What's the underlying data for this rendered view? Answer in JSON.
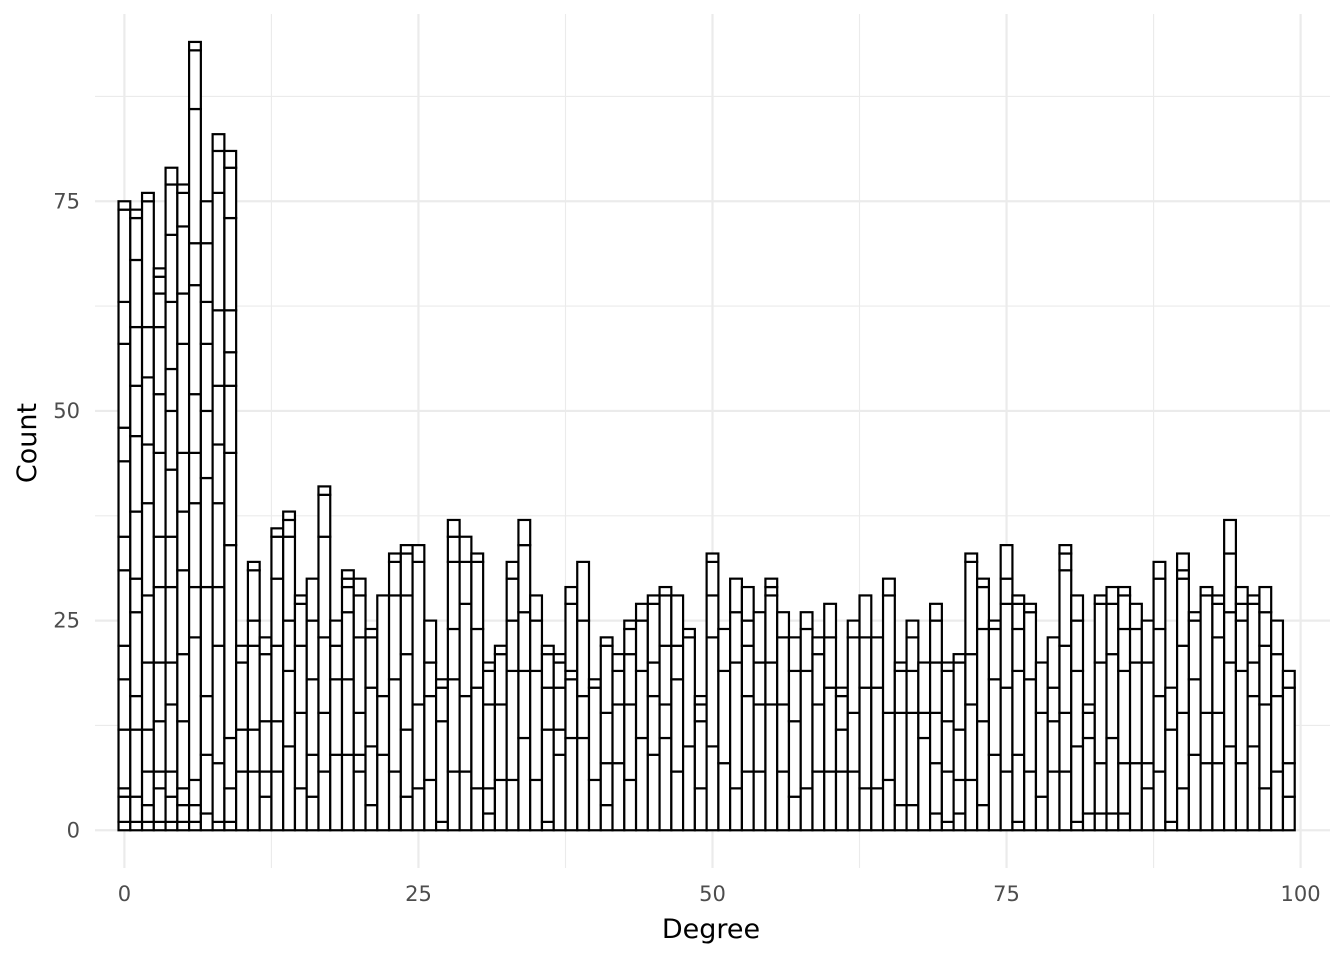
{
  "chart_data": {
    "type": "bar",
    "subtype": "stacked-histogram",
    "xlabel": "Degree",
    "ylabel": "Count",
    "xlim": [
      -2.5,
      102.5
    ],
    "ylim": [
      -4.5,
      99
    ],
    "x_ticks": [
      0,
      25,
      50,
      75,
      100
    ],
    "x_tick_labels": [
      "0",
      "25",
      "50",
      "75",
      "100"
    ],
    "y_ticks": [
      0,
      25,
      50,
      75
    ],
    "y_tick_labels": [
      "0",
      "25",
      "50",
      "75"
    ],
    "grid": true,
    "legend": "none",
    "bar_fill": "#ffffff",
    "bar_outline": "#000000",
    "grid_color": "#ebebeb",
    "categories": [
      0,
      1,
      2,
      3,
      4,
      5,
      6,
      7,
      8,
      9,
      10,
      11,
      12,
      13,
      14,
      15,
      16,
      17,
      18,
      19,
      20,
      21,
      22,
      23,
      24,
      25,
      26,
      27,
      28,
      29,
      30,
      31,
      32,
      33,
      34,
      35,
      36,
      37,
      38,
      39,
      40,
      41,
      42,
      43,
      44,
      45,
      46,
      47,
      48,
      49,
      50,
      51,
      52,
      53,
      54,
      55,
      56,
      57,
      58,
      59,
      60,
      61,
      62,
      63,
      64,
      65,
      66,
      67,
      68,
      69,
      70,
      71,
      72,
      73,
      74,
      75,
      76,
      77,
      78,
      79,
      80,
      81,
      82,
      83,
      84,
      85,
      86,
      87,
      88,
      89,
      90,
      91,
      92,
      93,
      94,
      95,
      96,
      97,
      98,
      99
    ],
    "totals": [
      75,
      74,
      76,
      67,
      79,
      77,
      94,
      74,
      83,
      81,
      22,
      32,
      23,
      36,
      38,
      28,
      30,
      41,
      25,
      31,
      30,
      24,
      28,
      33,
      34,
      34,
      25,
      18,
      37,
      35,
      33,
      20,
      22,
      32,
      37,
      28,
      22,
      21,
      29,
      32,
      18,
      23,
      21,
      25,
      27,
      28,
      29,
      28,
      24,
      16,
      33,
      24,
      30,
      29,
      26,
      30,
      26,
      23,
      26,
      23,
      27,
      17,
      25,
      28,
      23,
      30,
      20,
      25,
      20,
      27,
      20,
      21,
      33,
      30,
      25,
      34,
      28,
      27,
      20,
      23,
      34,
      28,
      15,
      28,
      29,
      29,
      27,
      25,
      32,
      17,
      33,
      26,
      29,
      28,
      37,
      29,
      28,
      29,
      25,
      19
    ],
    "stack_boundaries": [
      [
        1,
        4,
        5,
        12,
        18,
        22,
        31,
        35,
        44,
        48,
        58,
        63,
        74
      ],
      [
        1,
        4,
        12,
        16,
        26,
        30,
        38,
        47,
        53,
        60,
        68,
        73
      ],
      [
        1,
        3,
        7,
        12,
        20,
        28,
        39,
        46,
        54,
        60,
        75
      ],
      [
        1,
        5,
        7,
        13,
        20,
        29,
        35,
        45,
        52,
        60,
        64,
        66
      ],
      [
        1,
        4,
        7,
        15,
        20,
        29,
        35,
        43,
        50,
        55,
        63,
        71,
        77
      ],
      [
        1,
        3,
        5,
        13,
        21,
        31,
        38,
        45,
        58,
        64,
        72,
        76
      ],
      [
        1,
        3,
        6,
        23,
        29,
        39,
        45,
        52,
        65,
        70,
        86,
        93
      ],
      [
        2,
        9,
        16,
        29,
        42,
        50,
        58,
        63,
        70,
        75
      ],
      [
        1,
        8,
        22,
        29,
        39,
        46,
        53,
        62,
        76,
        81
      ],
      [
        1,
        5,
        11,
        34,
        45,
        53,
        57,
        62,
        73,
        79
      ],
      [
        7,
        12,
        20
      ],
      [
        7,
        12,
        22,
        25,
        31
      ],
      [
        4,
        7,
        13,
        21
      ],
      [
        7,
        13,
        22,
        30,
        35
      ],
      [
        10,
        19,
        25,
        35,
        37
      ],
      [
        5,
        14,
        22,
        27
      ],
      [
        4,
        9,
        18,
        25
      ],
      [
        7,
        14,
        23,
        35,
        40
      ],
      [
        9,
        18,
        22
      ],
      [
        9,
        18,
        26,
        29,
        30
      ],
      [
        7,
        9,
        14,
        23,
        28
      ],
      [
        3,
        10,
        17,
        23
      ],
      [
        9,
        16,
        28
      ],
      [
        7,
        18,
        28,
        32
      ],
      [
        4,
        12,
        21,
        28,
        33
      ],
      [
        5,
        15,
        32
      ],
      [
        6,
        16,
        20
      ],
      [
        1,
        13,
        17
      ],
      [
        7,
        18,
        24,
        32,
        35
      ],
      [
        7,
        16,
        27,
        32
      ],
      [
        5,
        17,
        24,
        32
      ],
      [
        2,
        5,
        15,
        19
      ],
      [
        6,
        15,
        21
      ],
      [
        6,
        19,
        25,
        30
      ],
      [
        11,
        19,
        26,
        34
      ],
      [
        6,
        19,
        25
      ],
      [
        1,
        12,
        17,
        21
      ],
      [
        9,
        12,
        17,
        20
      ],
      [
        11,
        18,
        19,
        27
      ],
      [
        11,
        16,
        25
      ],
      [
        6,
        17
      ],
      [
        3,
        8,
        14,
        22
      ],
      [
        8,
        15,
        19
      ],
      [
        6,
        15,
        21,
        24
      ],
      [
        11,
        19,
        25
      ],
      [
        9,
        16,
        20,
        27
      ],
      [
        11,
        15,
        22,
        28
      ],
      [
        7,
        18,
        22
      ],
      [
        10,
        23
      ],
      [
        5,
        13,
        15
      ],
      [
        10,
        23,
        28,
        32
      ],
      [
        8,
        19,
        24
      ],
      [
        5,
        20,
        26
      ],
      [
        7,
        16,
        22,
        25
      ],
      [
        7,
        15,
        20,
        26
      ],
      [
        15,
        20,
        28,
        29
      ],
      [
        7,
        15,
        23
      ],
      [
        4,
        13,
        19,
        23
      ],
      [
        5,
        19,
        24
      ],
      [
        7,
        15,
        21
      ],
      [
        7,
        17,
        23
      ],
      [
        7,
        12,
        16
      ],
      [
        7,
        14,
        23
      ],
      [
        5,
        17,
        23
      ],
      [
        5,
        17,
        23
      ],
      [
        6,
        14,
        28
      ],
      [
        3,
        14,
        19
      ],
      [
        3,
        14,
        19,
        23
      ],
      [
        11,
        14,
        20
      ],
      [
        2,
        8,
        14,
        20,
        25
      ],
      [
        1,
        7,
        13,
        19
      ],
      [
        2,
        6,
        12,
        20
      ],
      [
        6,
        15,
        21,
        32
      ],
      [
        3,
        13,
        24,
        29
      ],
      [
        9,
        18,
        24
      ],
      [
        7,
        17,
        27,
        30
      ],
      [
        1,
        9,
        19,
        24,
        27
      ],
      [
        7,
        18,
        26
      ],
      [
        4,
        14
      ],
      [
        7,
        13,
        17
      ],
      [
        7,
        14,
        22,
        31,
        33
      ],
      [
        1,
        10,
        19,
        25
      ],
      [
        2,
        11,
        14
      ],
      [
        2,
        8,
        20,
        27
      ],
      [
        2,
        11,
        21,
        27
      ],
      [
        2,
        8,
        19,
        24,
        28
      ],
      [
        8,
        20,
        24
      ],
      [
        5,
        8,
        20
      ],
      [
        7,
        16,
        24,
        30
      ],
      [
        1,
        12,
        17
      ],
      [
        5,
        14,
        22,
        30,
        31
      ],
      [
        9,
        18,
        25
      ],
      [
        8,
        14,
        28
      ],
      [
        8,
        14,
        23,
        27
      ],
      [
        10,
        20,
        26,
        33
      ],
      [
        8,
        19,
        25,
        27
      ],
      [
        10,
        16,
        20,
        27
      ],
      [
        5,
        15,
        22,
        26
      ],
      [
        7,
        16,
        21
      ],
      [
        4,
        8,
        17
      ]
    ]
  }
}
